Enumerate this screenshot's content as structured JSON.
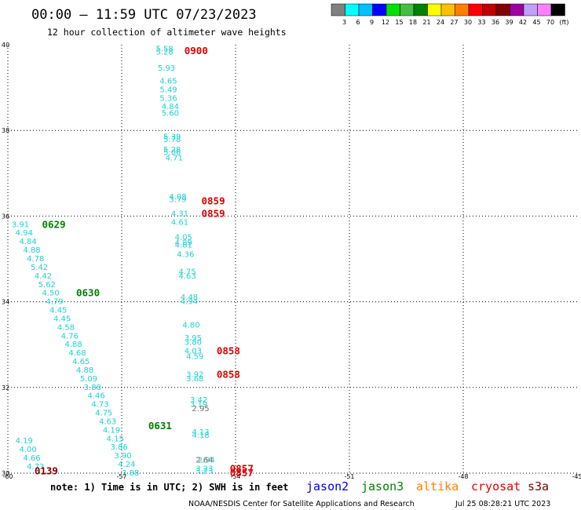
{
  "header": {
    "title": "00:00 – 11:59 UTC 07/23/2023",
    "subtitle": "12 hour collection of altimeter wave heights"
  },
  "color_scale": {
    "colors": [
      "#808080",
      "#00ffff",
      "#00c0ff",
      "#0000ff",
      "#00e000",
      "#40c040",
      "#008000",
      "#ffff00",
      "#ffc000",
      "#ff8000",
      "#ff0000",
      "#c00000",
      "#800000",
      "#a000a0",
      "#c0a0ff",
      "#ff80ff",
      "#000000"
    ],
    "labels": [
      "3",
      "6",
      "9",
      "12",
      "15",
      "18",
      "21",
      "24",
      "27",
      "30",
      "33",
      "36",
      "39",
      "42",
      "45",
      "70",
      "(ft)"
    ]
  },
  "chart_data": {
    "type": "scatter",
    "title": "12 hour collection of altimeter wave heights",
    "xlabel": "",
    "ylabel": "",
    "xlim": [
      -60,
      -45
    ],
    "ylim": [
      30,
      40
    ],
    "x_ticks": [
      "-60",
      "-57",
      "-54",
      "-51",
      "-48",
      "-45"
    ],
    "y_ticks": [
      "40",
      "38",
      "36",
      "34",
      "32",
      "30"
    ],
    "series": [
      {
        "name": "jason3",
        "color": "#20d0d0",
        "points": [
          {
            "x": -59.9,
            "y": 35.8,
            "v": "3.91"
          },
          {
            "x": -59.8,
            "y": 35.6,
            "v": "4.94"
          },
          {
            "x": -59.7,
            "y": 35.4,
            "v": "4.84"
          },
          {
            "x": -59.6,
            "y": 35.2,
            "v": "4.88"
          },
          {
            "x": -59.5,
            "y": 35.0,
            "v": "4.78"
          },
          {
            "x": -59.4,
            "y": 34.8,
            "v": "5.42"
          },
          {
            "x": -59.3,
            "y": 34.6,
            "v": "4.42"
          },
          {
            "x": -59.2,
            "y": 34.4,
            "v": "5.62"
          },
          {
            "x": -59.1,
            "y": 34.2,
            "v": "4.50"
          },
          {
            "x": -59.0,
            "y": 34.0,
            "v": "4.79"
          },
          {
            "x": -58.9,
            "y": 33.8,
            "v": "4.45"
          },
          {
            "x": -58.8,
            "y": 33.6,
            "v": "4.45"
          },
          {
            "x": -58.7,
            "y": 33.4,
            "v": "4.58"
          },
          {
            "x": -58.6,
            "y": 33.2,
            "v": "4.76"
          },
          {
            "x": -58.5,
            "y": 33.0,
            "v": "4.88"
          },
          {
            "x": -58.4,
            "y": 32.8,
            "v": "4.68"
          },
          {
            "x": -58.3,
            "y": 32.6,
            "v": "4.65"
          },
          {
            "x": -58.2,
            "y": 32.4,
            "v": "4.88"
          },
          {
            "x": -58.1,
            "y": 32.2,
            "v": "5.09"
          },
          {
            "x": -58.0,
            "y": 32.0,
            "v": "3.88"
          },
          {
            "x": -57.9,
            "y": 31.8,
            "v": "4.46"
          },
          {
            "x": -57.8,
            "y": 31.6,
            "v": "4.73"
          },
          {
            "x": -57.7,
            "y": 31.4,
            "v": "4.75"
          },
          {
            "x": -57.6,
            "y": 31.2,
            "v": "4.63"
          },
          {
            "x": -57.5,
            "y": 31.0,
            "v": "4.19"
          },
          {
            "x": -57.4,
            "y": 30.8,
            "v": "4.15"
          },
          {
            "x": -57.3,
            "y": 30.6,
            "v": "3.86"
          },
          {
            "x": -57.2,
            "y": 30.4,
            "v": "3.90"
          },
          {
            "x": -57.1,
            "y": 30.2,
            "v": "4.24"
          },
          {
            "x": -57.0,
            "y": 30.0,
            "v": "3.88"
          },
          {
            "x": -59.8,
            "y": 30.75,
            "v": "4.19"
          },
          {
            "x": -59.7,
            "y": 30.55,
            "v": "4.00"
          },
          {
            "x": -59.6,
            "y": 30.35,
            "v": "4.66"
          },
          {
            "x": -59.5,
            "y": 30.15,
            "v": "4.73"
          }
        ],
        "labels": [
          {
            "x": -59.1,
            "y": 35.8,
            "text": "0629"
          },
          {
            "x": -58.2,
            "y": 34.2,
            "text": "0630"
          },
          {
            "x": -56.3,
            "y": 31.1,
            "text": "0631"
          }
        ]
      },
      {
        "name": "cryosat",
        "color": "#20d0d0",
        "points": [
          {
            "x": -56.1,
            "y": 39.9,
            "v": "5.58"
          },
          {
            "x": -56.1,
            "y": 39.83,
            "v": "5.28"
          },
          {
            "x": -56.05,
            "y": 39.45,
            "v": "5.93"
          },
          {
            "x": -56.0,
            "y": 39.15,
            "v": "4.65"
          },
          {
            "x": -56.0,
            "y": 38.95,
            "v": "5.49"
          },
          {
            "x": -56.0,
            "y": 38.75,
            "v": "5.36"
          },
          {
            "x": -55.95,
            "y": 38.55,
            "v": "4.84"
          },
          {
            "x": -55.95,
            "y": 38.4,
            "v": "5.60"
          },
          {
            "x": -55.9,
            "y": 37.85,
            "v": "5.39"
          },
          {
            "x": -55.9,
            "y": 37.78,
            "v": "5.78"
          },
          {
            "x": -55.9,
            "y": 37.55,
            "v": "5.28"
          },
          {
            "x": -55.9,
            "y": 37.48,
            "v": "5.06"
          },
          {
            "x": -55.85,
            "y": 37.35,
            "v": "4.71"
          },
          {
            "x": -55.75,
            "y": 36.45,
            "v": "4.08"
          },
          {
            "x": -55.75,
            "y": 36.38,
            "v": "3.79"
          },
          {
            "x": -55.7,
            "y": 36.05,
            "v": "4.31"
          },
          {
            "x": -55.7,
            "y": 35.85,
            "v": "4.61"
          },
          {
            "x": -55.6,
            "y": 35.5,
            "v": "4.05"
          },
          {
            "x": -55.6,
            "y": 35.38,
            "v": "4.89"
          },
          {
            "x": -55.6,
            "y": 35.32,
            "v": "4.81"
          },
          {
            "x": -55.55,
            "y": 35.1,
            "v": "4.36"
          },
          {
            "x": -55.5,
            "y": 34.7,
            "v": "4.75"
          },
          {
            "x": -55.5,
            "y": 34.6,
            "v": "4.63"
          },
          {
            "x": -55.45,
            "y": 34.1,
            "v": "4.48"
          },
          {
            "x": -55.45,
            "y": 34.0,
            "v": "4.94"
          },
          {
            "x": -55.4,
            "y": 33.45,
            "v": "4.80"
          },
          {
            "x": -55.35,
            "y": 33.15,
            "v": "3.95"
          },
          {
            "x": -55.35,
            "y": 33.05,
            "v": "3.80"
          },
          {
            "x": -55.35,
            "y": 32.85,
            "v": "4.03"
          },
          {
            "x": -55.3,
            "y": 32.72,
            "v": "4.59"
          },
          {
            "x": -55.3,
            "y": 32.3,
            "v": "3.92"
          },
          {
            "x": -55.3,
            "y": 32.2,
            "v": "3.68"
          },
          {
            "x": -55.2,
            "y": 31.7,
            "v": "3.42"
          },
          {
            "x": -55.2,
            "y": 31.6,
            "v": "3.19"
          },
          {
            "x": -55.15,
            "y": 30.95,
            "v": "4.13"
          },
          {
            "x": -55.15,
            "y": 30.88,
            "v": "4.18"
          },
          {
            "x": -55.05,
            "y": 30.1,
            "v": "3.23"
          },
          {
            "x": -55.05,
            "y": 30.05,
            "v": "3.23"
          },
          {
            "x": -55.0,
            "y": 30.3,
            "v": "2.94"
          }
        ],
        "labels": [
          {
            "x": -55.35,
            "y": 39.85,
            "text": "0900"
          },
          {
            "x": -54.9,
            "y": 36.35,
            "text": "0859"
          },
          {
            "x": -54.9,
            "y": 36.05,
            "text": "0859"
          },
          {
            "x": -54.5,
            "y": 32.85,
            "text": "0858"
          },
          {
            "x": -54.5,
            "y": 32.3,
            "text": "0858"
          },
          {
            "x": -54.15,
            "y": 30.1,
            "text": "0857"
          },
          {
            "x": -54.15,
            "y": 30.0,
            "text": "0857"
          },
          {
            "x": -59.3,
            "y": 30.05,
            "text": "0139"
          }
        ]
      },
      {
        "name": "s3a",
        "color": "#707070",
        "points": [
          {
            "x": -55.15,
            "y": 31.5,
            "v": "2.95"
          },
          {
            "x": -55.05,
            "y": 30.3,
            "v": "2.64"
          }
        ],
        "labels": []
      }
    ],
    "grid": true,
    "legend_position": "bottom"
  },
  "footer": {
    "note": "note: 1) Time is in UTC; 2) SWH is in feet",
    "satellites": [
      {
        "name": "jason2",
        "color": "#0000e0"
      },
      {
        "name": "jason3",
        "color": "#008000"
      },
      {
        "name": "altika",
        "color": "#ff8000"
      },
      {
        "name": "cryosat",
        "color": "#e00000"
      },
      {
        "name": "s3a",
        "color": "#800000"
      }
    ],
    "credit_left": "NOAA/NESDIS Center for Satellite Applications and Research",
    "credit_right": "Jul 25 08:28:21 UTC 2023"
  }
}
